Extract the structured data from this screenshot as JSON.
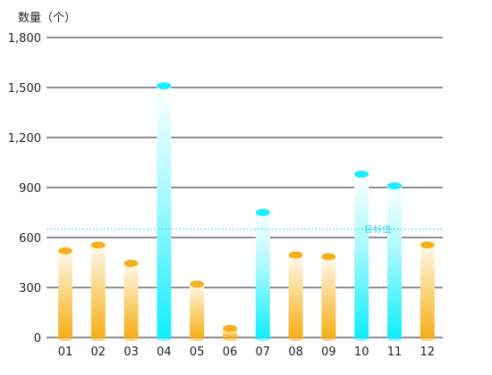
{
  "chart_data": {
    "type": "bar",
    "y_axis_title": "数量（个）",
    "categories": [
      "01",
      "02",
      "03",
      "04",
      "05",
      "06",
      "07",
      "08",
      "09",
      "10",
      "11",
      "12"
    ],
    "values": [
      520,
      555,
      445,
      1510,
      320,
      55,
      750,
      495,
      485,
      980,
      910,
      555
    ],
    "ylim": [
      0,
      1800
    ],
    "yticks": [
      0,
      300,
      600,
      900,
      1200,
      1500,
      1800
    ],
    "ytick_labels": [
      "0",
      "300",
      "600",
      "900",
      "1,200",
      "1,500",
      "1,800"
    ],
    "target": {
      "label": "目标值",
      "value": 650
    },
    "grid": true,
    "colors": {
      "above_target": "#19f0ff",
      "below_target": "#f7b01c",
      "below_target_light": "#fff5dd",
      "target_line": "#3fd8e6",
      "grid": "#1c1c2a"
    }
  }
}
